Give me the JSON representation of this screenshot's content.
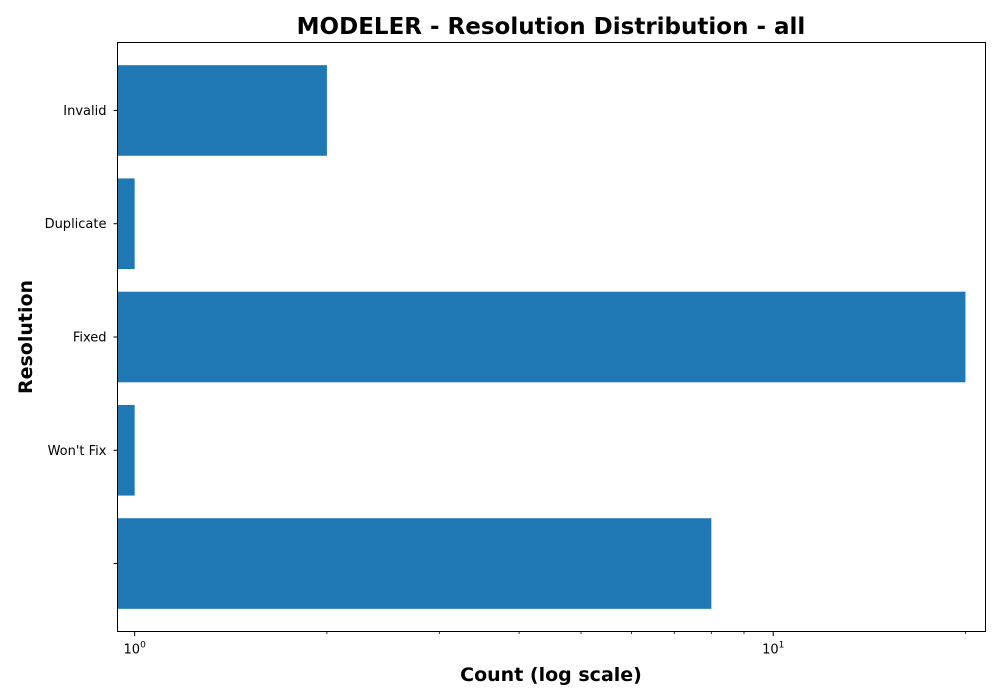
{
  "chart_data": {
    "type": "bar",
    "orientation": "horizontal",
    "title": "MODELER - Resolution Distribution - all",
    "xlabel": "Count (log scale)",
    "ylabel": "Resolution",
    "xscale": "log",
    "xlim": [
      0.94,
      21.5
    ],
    "xticks": [
      {
        "value": 1,
        "base": "10",
        "exp": "0"
      },
      {
        "value": 10,
        "base": "10",
        "exp": "1"
      }
    ],
    "categories": [
      "Invalid",
      "Duplicate",
      "Fixed",
      "Won't Fix",
      ""
    ],
    "values": [
      2,
      1,
      20,
      1,
      8
    ],
    "bar_color": "#1f77b4",
    "grid": false,
    "legend": "none"
  }
}
